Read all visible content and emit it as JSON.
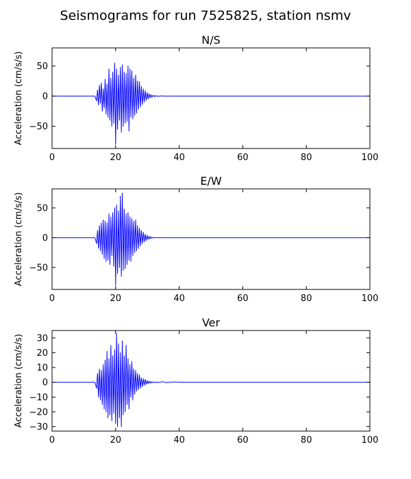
{
  "figure": {
    "suptitle": "Seismograms for run 7525825, station nsmv"
  },
  "colors": {
    "trace": "#0000ff",
    "axes": "#000000",
    "background": "#ffffff"
  },
  "chart_data": [
    {
      "type": "line",
      "title": "N/S",
      "xlabel": "",
      "ylabel": "Acceleration (cm/s/s)",
      "xlim": [
        0,
        100
      ],
      "ylim": [
        -87,
        80
      ],
      "xticks": [
        0,
        20,
        40,
        60,
        80,
        100
      ],
      "yticks": [
        50,
        0,
        -50
      ],
      "grid": false,
      "series": [
        {
          "x": [
            0,
            13.5,
            14.0,
            14.3,
            14.6,
            14.9,
            15.2,
            15.5,
            15.8,
            16.1,
            16.4,
            16.7,
            17.0,
            17.3,
            17.6,
            17.9,
            18.2,
            18.5,
            18.8,
            19.1,
            19.4,
            19.7,
            20.0,
            20.3,
            20.6,
            20.9,
            21.2,
            21.5,
            21.8,
            22.1,
            22.4,
            22.7,
            23.0,
            23.3,
            23.6,
            23.9,
            24.2,
            24.5,
            24.8,
            25.1,
            25.4,
            25.7,
            26.0,
            26.3,
            26.6,
            26.9,
            27.2,
            27.5,
            27.8,
            28.1,
            28.4,
            28.7,
            29.0,
            29.3,
            29.6,
            29.9,
            30.2,
            30.5,
            30.8,
            31.1,
            31.4,
            31.8,
            32.2,
            32.7,
            33.3,
            34.0,
            35.0,
            100
          ],
          "y": [
            0,
            0,
            -8,
            10,
            -15,
            18,
            -12,
            22,
            -25,
            12,
            -20,
            28,
            -30,
            20,
            -35,
            45,
            -40,
            30,
            -50,
            40,
            -45,
            55,
            -80,
            45,
            -55,
            35,
            -40,
            48,
            -60,
            52,
            -50,
            40,
            -45,
            38,
            -42,
            50,
            -58,
            45,
            -35,
            42,
            -38,
            30,
            -32,
            35,
            -28,
            25,
            -22,
            24,
            -18,
            16,
            -14,
            12,
            -10,
            9,
            -7,
            6,
            -5,
            4,
            -3,
            2.5,
            -2,
            1.5,
            -1,
            0.8,
            -0.5,
            0.3,
            0,
            0
          ]
        }
      ]
    },
    {
      "type": "line",
      "title": "E/W",
      "xlabel": "",
      "ylabel": "Acceleration (cm/s/s)",
      "xlim": [
        0,
        100
      ],
      "ylim": [
        -87,
        82
      ],
      "xticks": [
        0,
        20,
        40,
        60,
        80,
        100
      ],
      "yticks": [
        50,
        0,
        -50
      ],
      "grid": false,
      "series": [
        {
          "x": [
            0,
            13.5,
            14.0,
            14.3,
            14.6,
            14.9,
            15.2,
            15.5,
            15.8,
            16.1,
            16.4,
            16.7,
            17.0,
            17.3,
            17.6,
            17.9,
            18.2,
            18.5,
            18.8,
            19.1,
            19.4,
            19.7,
            20.0,
            20.3,
            20.6,
            20.9,
            21.2,
            21.5,
            21.8,
            22.1,
            22.4,
            22.7,
            23.0,
            23.3,
            23.6,
            23.9,
            24.2,
            24.5,
            24.8,
            25.1,
            25.4,
            25.7,
            26.0,
            26.3,
            26.6,
            26.9,
            27.2,
            27.5,
            27.8,
            28.1,
            28.4,
            28.7,
            29.0,
            29.3,
            29.6,
            29.9,
            30.2,
            30.5,
            30.8,
            31.1,
            31.4,
            31.8,
            32.2,
            32.7,
            33.3,
            34.0,
            35.0,
            100
          ],
          "y": [
            0,
            0,
            -10,
            12,
            -18,
            20,
            -22,
            25,
            -28,
            30,
            -35,
            28,
            -40,
            25,
            -38,
            40,
            -45,
            35,
            -30,
            42,
            -48,
            50,
            -80,
            55,
            -60,
            45,
            -50,
            70,
            -65,
            75,
            -55,
            48,
            -52,
            40,
            -45,
            42,
            -38,
            35,
            -40,
            32,
            -30,
            28,
            -25,
            30,
            -22,
            20,
            -18,
            16,
            -14,
            12,
            -10,
            9,
            -7,
            6,
            -5,
            4,
            -3,
            2.5,
            -2,
            1.5,
            -1,
            0.8,
            -0.5,
            0.3,
            -0.2,
            0.1,
            0,
            0
          ]
        }
      ]
    },
    {
      "type": "line",
      "title": "Ver",
      "xlabel": "",
      "ylabel": "Acceleration (cm/s/s)",
      "xlim": [
        0,
        100
      ],
      "ylim": [
        -33,
        35
      ],
      "xticks": [
        0,
        20,
        40,
        60,
        80,
        100
      ],
      "yticks": [
        30,
        20,
        10,
        0,
        -10,
        -20,
        -30
      ],
      "grid": false,
      "series": [
        {
          "x": [
            0,
            13.5,
            14.0,
            14.3,
            14.6,
            14.9,
            15.2,
            15.5,
            15.8,
            16.1,
            16.4,
            16.7,
            17.0,
            17.3,
            17.6,
            17.9,
            18.2,
            18.5,
            18.8,
            19.1,
            19.4,
            19.7,
            20.0,
            20.3,
            20.6,
            20.9,
            21.2,
            21.5,
            21.8,
            22.1,
            22.4,
            22.7,
            23.0,
            23.3,
            23.6,
            23.9,
            24.2,
            24.5,
            24.8,
            25.1,
            25.4,
            25.7,
            26.0,
            26.3,
            26.6,
            26.9,
            27.2,
            27.5,
            27.8,
            28.1,
            28.4,
            28.7,
            29.0,
            29.3,
            29.6,
            29.9,
            30.2,
            30.5,
            30.8,
            31.1,
            31.4,
            31.8,
            32.2,
            32.7,
            33.3,
            34.0,
            35.0,
            36.0,
            38.0,
            42.0,
            100
          ],
          "y": [
            0,
            0,
            -4,
            6,
            -10,
            9,
            -12,
            8,
            -15,
            12,
            -18,
            15,
            -20,
            21,
            -24,
            16,
            -22,
            25,
            -26,
            18,
            -21,
            22,
            -28,
            33,
            -30,
            26,
            -24,
            20,
            -30,
            28,
            -22,
            18,
            -20,
            25,
            -15,
            16,
            -18,
            12,
            -10,
            14,
            -12,
            9,
            -8,
            8,
            -6,
            6,
            -5,
            5,
            -4,
            3,
            -3,
            2.5,
            -2,
            2,
            -1.5,
            1.2,
            -1,
            0.8,
            -0.6,
            0.5,
            -0.4,
            0.3,
            -0.2,
            0.2,
            -0.2,
            0.1,
            0.4,
            -0.2,
            0.2,
            0,
            0
          ]
        }
      ]
    }
  ]
}
